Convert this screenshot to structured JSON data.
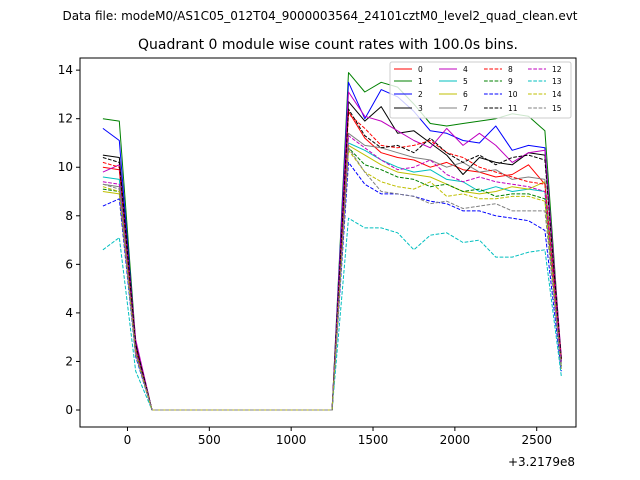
{
  "figure": {
    "suptitle": "Data file: modeM0/AS1C05_012T04_9000003564_24101cztM0_level2_quad_clean.evt",
    "title": "Quadrant 0 module wise count rates with 100.0s bins.",
    "x_offset_label": "+3.2179e8"
  },
  "chart_data": {
    "type": "line",
    "title": "Quadrant 0 module wise count rates with 100.0s bins.",
    "xlabel": "",
    "ylabel": "",
    "x_offset": "+3.2179e8",
    "xlim": [
      -290,
      2740
    ],
    "ylim": [
      -0.7,
      14.5
    ],
    "xticks": [
      0,
      500,
      1000,
      1500,
      2000,
      2500
    ],
    "yticks": [
      0,
      2,
      4,
      6,
      8,
      10,
      12,
      14
    ],
    "legend_position": "top-right",
    "legend_columns": 4,
    "x": [
      -150,
      -50,
      50,
      150,
      250,
      350,
      450,
      550,
      650,
      750,
      850,
      950,
      1050,
      1150,
      1250,
      1350,
      1450,
      1550,
      1650,
      1750,
      1850,
      1950,
      2050,
      2150,
      2250,
      2350,
      2450,
      2550,
      2650
    ],
    "series": [
      {
        "name": "0",
        "color": "#ff0000",
        "dash": "solid",
        "values": [
          10.0,
          9.9,
          2.6,
          0,
          0,
          0,
          0,
          0,
          0,
          0,
          0,
          0,
          0,
          0,
          0,
          12.3,
          11.2,
          10.6,
          10.4,
          10.3,
          10.0,
          10.2,
          9.9,
          9.8,
          9.6,
          9.7,
          10.1,
          9.3,
          2.1
        ]
      },
      {
        "name": "1",
        "color": "#008000",
        "dash": "solid",
        "values": [
          12.0,
          11.9,
          2.8,
          0,
          0,
          0,
          0,
          0,
          0,
          0,
          0,
          0,
          0,
          0,
          0,
          13.9,
          13.1,
          13.5,
          13.3,
          12.6,
          11.8,
          11.7,
          11.8,
          11.9,
          12.0,
          12.2,
          12.1,
          11.5,
          2.0
        ]
      },
      {
        "name": "2",
        "color": "#0000ff",
        "dash": "solid",
        "values": [
          11.6,
          11.1,
          2.7,
          0,
          0,
          0,
          0,
          0,
          0,
          0,
          0,
          0,
          0,
          0,
          0,
          13.5,
          12.0,
          13.2,
          12.9,
          12.3,
          11.5,
          11.4,
          11.1,
          11.0,
          11.7,
          10.7,
          10.9,
          10.8,
          2.0
        ]
      },
      {
        "name": "3",
        "color": "#000000",
        "dash": "solid",
        "values": [
          10.5,
          10.4,
          2.8,
          0,
          0,
          0,
          0,
          0,
          0,
          0,
          0,
          0,
          0,
          0,
          0,
          12.7,
          11.9,
          12.5,
          11.4,
          11.5,
          11.0,
          10.5,
          9.7,
          10.4,
          10.2,
          10.1,
          10.6,
          10.5,
          2.1
        ]
      },
      {
        "name": "4",
        "color": "#bf00bf",
        "dash": "solid",
        "values": [
          9.8,
          10.1,
          2.9,
          0,
          0,
          0,
          0,
          0,
          0,
          0,
          0,
          0,
          0,
          0,
          0,
          13.1,
          12.1,
          11.9,
          11.5,
          11.1,
          10.8,
          11.6,
          10.9,
          11.4,
          10.9,
          10.2,
          10.6,
          10.7,
          2.2
        ]
      },
      {
        "name": "5",
        "color": "#00bfbf",
        "dash": "solid",
        "values": [
          9.6,
          9.5,
          2.4,
          0,
          0,
          0,
          0,
          0,
          0,
          0,
          0,
          0,
          0,
          0,
          0,
          11.0,
          10.7,
          10.3,
          10.0,
          9.8,
          9.9,
          9.5,
          9.4,
          9.0,
          9.2,
          9.0,
          9.1,
          9.0,
          1.9
        ]
      },
      {
        "name": "6",
        "color": "#bfbf00",
        "dash": "solid",
        "values": [
          9.0,
          8.9,
          2.3,
          0,
          0,
          0,
          0,
          0,
          0,
          0,
          0,
          0,
          0,
          0,
          0,
          10.9,
          10.5,
          10.1,
          9.8,
          9.7,
          9.6,
          9.3,
          9.0,
          8.9,
          9.0,
          9.2,
          9.1,
          9.4,
          1.8
        ]
      },
      {
        "name": "7",
        "color": "#808080",
        "dash": "solid",
        "values": [
          9.3,
          9.2,
          2.5,
          0,
          0,
          0,
          0,
          0,
          0,
          0,
          0,
          0,
          0,
          0,
          0,
          11.4,
          10.9,
          10.8,
          10.6,
          10.4,
          10.3,
          10.0,
          10.2,
          9.8,
          9.9,
          9.5,
          9.6,
          9.5,
          2.0
        ]
      },
      {
        "name": "8",
        "color": "#ff0000",
        "dash": "dashed",
        "values": [
          10.2,
          10.0,
          2.6,
          0,
          0,
          0,
          0,
          0,
          0,
          0,
          0,
          0,
          0,
          0,
          0,
          12.2,
          11.6,
          10.9,
          10.8,
          10.9,
          11.1,
          10.6,
          10.4,
          10.0,
          9.8,
          9.6,
          9.4,
          9.3,
          2.1
        ]
      },
      {
        "name": "9",
        "color": "#008000",
        "dash": "dashed",
        "values": [
          9.1,
          9.0,
          2.4,
          0,
          0,
          0,
          0,
          0,
          0,
          0,
          0,
          0,
          0,
          0,
          0,
          10.8,
          10.1,
          9.9,
          9.6,
          9.5,
          9.2,
          9.3,
          9.0,
          9.1,
          8.8,
          8.9,
          8.9,
          8.7,
          1.8
        ]
      },
      {
        "name": "10",
        "color": "#0000ff",
        "dash": "dashed",
        "values": [
          8.4,
          8.7,
          2.2,
          0,
          0,
          0,
          0,
          0,
          0,
          0,
          0,
          0,
          0,
          0,
          0,
          10.2,
          9.3,
          8.9,
          8.9,
          8.8,
          8.6,
          8.5,
          8.2,
          8.2,
          8.0,
          7.9,
          7.8,
          7.4,
          1.6
        ]
      },
      {
        "name": "11",
        "color": "#000000",
        "dash": "dashed",
        "values": [
          10.4,
          10.2,
          2.7,
          0,
          0,
          0,
          0,
          0,
          0,
          0,
          0,
          0,
          0,
          0,
          0,
          12.4,
          11.3,
          10.8,
          10.9,
          10.6,
          11.2,
          10.6,
          10.2,
          10.5,
          10.1,
          10.4,
          10.5,
          10.3,
          2.1
        ]
      },
      {
        "name": "12",
        "color": "#bf00bf",
        "dash": "dashed",
        "values": [
          9.4,
          9.3,
          2.4,
          0,
          0,
          0,
          0,
          0,
          0,
          0,
          0,
          0,
          0,
          0,
          0,
          11.3,
          10.8,
          10.3,
          9.9,
          10.0,
          10.3,
          9.7,
          9.4,
          9.6,
          9.4,
          9.3,
          9.2,
          9.0,
          1.9
        ]
      },
      {
        "name": "13",
        "color": "#00bfbf",
        "dash": "dashed",
        "values": [
          6.6,
          7.1,
          1.6,
          0,
          0,
          0,
          0,
          0,
          0,
          0,
          0,
          0,
          0,
          0,
          0,
          7.9,
          7.5,
          7.5,
          7.3,
          6.6,
          7.2,
          7.3,
          6.9,
          7.0,
          6.3,
          6.3,
          6.5,
          6.6,
          1.4
        ]
      },
      {
        "name": "14",
        "color": "#bfbf00",
        "dash": "dashed",
        "values": [
          9.2,
          9.0,
          2.3,
          0,
          0,
          0,
          0,
          0,
          0,
          0,
          0,
          0,
          0,
          0,
          0,
          10.7,
          9.8,
          9.4,
          9.2,
          9.1,
          9.4,
          8.8,
          8.9,
          8.7,
          8.7,
          8.8,
          8.8,
          8.6,
          1.7
        ]
      },
      {
        "name": "15",
        "color": "#808080",
        "dash": "dashed",
        "values": [
          9.3,
          9.1,
          2.3,
          0,
          0,
          0,
          0,
          0,
          0,
          0,
          0,
          0,
          0,
          0,
          0,
          10.8,
          9.8,
          9.0,
          8.9,
          8.8,
          8.5,
          8.6,
          8.3,
          8.4,
          8.5,
          8.2,
          8.2,
          8.2,
          1.7
        ]
      }
    ]
  }
}
